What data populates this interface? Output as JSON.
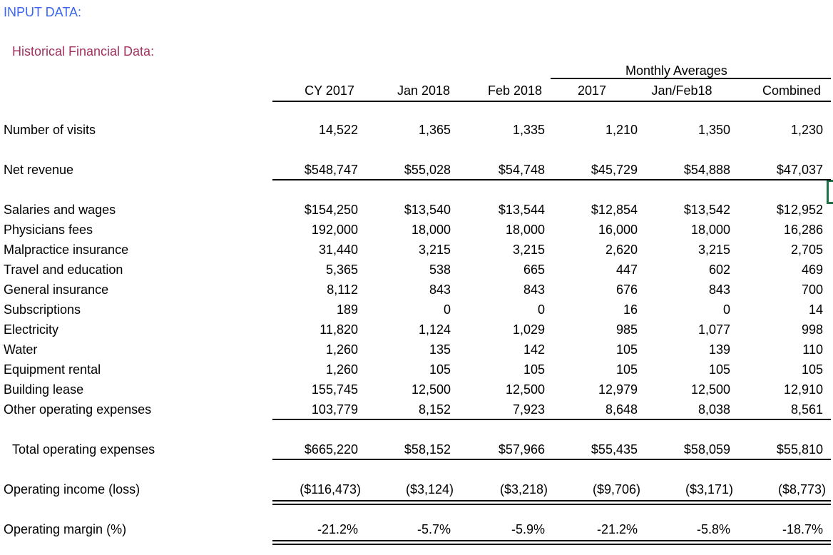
{
  "title": "INPUT DATA:",
  "subtitle": "Historical Financial Data:",
  "group_header": "Monthly Averages",
  "columns": [
    "CY 2017",
    "Jan 2018",
    "Feb 2018",
    "2017",
    "Jan/Feb18",
    "Combined"
  ],
  "rows": [
    {
      "label": "Number of visits",
      "values": [
        "14,522",
        "1,365",
        "1,335",
        "1,210",
        "1,350",
        "1,230"
      ]
    },
    {
      "label": "Net revenue",
      "values": [
        "$548,747",
        "$55,028",
        "$54,748",
        "$45,729",
        "$54,888",
        "$47,037"
      ]
    },
    {
      "label": "Salaries and wages",
      "values": [
        "$154,250",
        "$13,540",
        "$13,544",
        "$12,854",
        "$13,542",
        "$12,952"
      ]
    },
    {
      "label": "Physicians fees",
      "values": [
        "192,000",
        "18,000",
        "18,000",
        "16,000",
        "18,000",
        "16,286"
      ]
    },
    {
      "label": "Malpractice insurance",
      "values": [
        "31,440",
        "3,215",
        "3,215",
        "2,620",
        "3,215",
        "2,705"
      ]
    },
    {
      "label": "Travel and education",
      "values": [
        "5,365",
        "538",
        "665",
        "447",
        "602",
        "469"
      ]
    },
    {
      "label": "General insurance",
      "values": [
        "8,112",
        "843",
        "843",
        "676",
        "843",
        "700"
      ]
    },
    {
      "label": "Subscriptions",
      "values": [
        "189",
        "0",
        "0",
        "16",
        "0",
        "14"
      ]
    },
    {
      "label": "Electricity",
      "values": [
        "11,820",
        "1,124",
        "1,029",
        "985",
        "1,077",
        "998"
      ]
    },
    {
      "label": "Water",
      "values": [
        "1,260",
        "135",
        "142",
        "105",
        "139",
        "110"
      ]
    },
    {
      "label": "Equipment rental",
      "values": [
        "1,260",
        "105",
        "105",
        "105",
        "105",
        "105"
      ]
    },
    {
      "label": "Building lease",
      "values": [
        "155,745",
        "12,500",
        "12,500",
        "12,979",
        "12,500",
        "12,910"
      ]
    },
    {
      "label": "Other operating expenses",
      "values": [
        "103,779",
        "8,152",
        "7,923",
        "8,648",
        "8,038",
        "8,561"
      ]
    },
    {
      "label": "Total operating expenses",
      "values": [
        "$665,220",
        "$58,152",
        "$57,966",
        "$55,435",
        "$58,059",
        "$55,810"
      ]
    },
    {
      "label": "Operating income (loss)",
      "values": [
        "($116,473)",
        "($3,124)",
        "($3,218)",
        "($9,706)",
        "($3,171)",
        "($8,773)"
      ]
    },
    {
      "label": "Operating margin (%)",
      "values": [
        "-21.2%",
        "-5.7%",
        "-5.9%",
        "-21.2%",
        "-5.8%",
        "-18.7%"
      ]
    }
  ]
}
